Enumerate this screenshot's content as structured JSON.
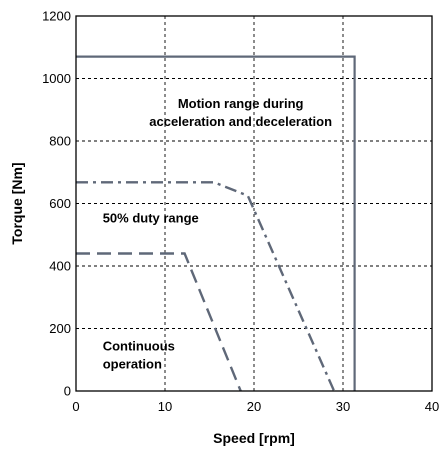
{
  "chart_data": {
    "type": "line",
    "title": "",
    "xlabel": "Speed [rpm]",
    "ylabel": "Torque [Nm]",
    "xlim": [
      0,
      40
    ],
    "ylim": [
      0,
      1200
    ],
    "xticks": [
      0,
      10,
      20,
      30,
      40
    ],
    "yticks": [
      0,
      200,
      400,
      600,
      800,
      1000,
      1200
    ],
    "grid": true,
    "legend": "none",
    "series": [
      {
        "style": "solid",
        "color": "#5f6878",
        "points": [
          [
            0,
            1070
          ],
          [
            31.3,
            1070
          ],
          [
            31.3,
            0
          ]
        ]
      },
      {
        "style": "dash-dot",
        "color": "#5f6878",
        "points": [
          [
            0,
            668
          ],
          [
            15.5,
            668
          ],
          [
            19.3,
            625
          ],
          [
            29,
            0
          ]
        ]
      },
      {
        "style": "dashed",
        "color": "#5f6878",
        "points": [
          [
            0,
            440
          ],
          [
            12.2,
            440
          ],
          [
            18.5,
            0
          ]
        ]
      }
    ],
    "annotations": [
      {
        "lines": [
          "Motion range during",
          "acceleration and deceleration"
        ],
        "x": 18.5,
        "y": 905,
        "anchor": "middle"
      },
      {
        "lines": [
          "50% duty range"
        ],
        "x": 3,
        "y": 540,
        "anchor": "start"
      },
      {
        "lines": [
          "Continuous",
          "operation"
        ],
        "x": 3,
        "y": 130,
        "anchor": "start"
      }
    ]
  }
}
